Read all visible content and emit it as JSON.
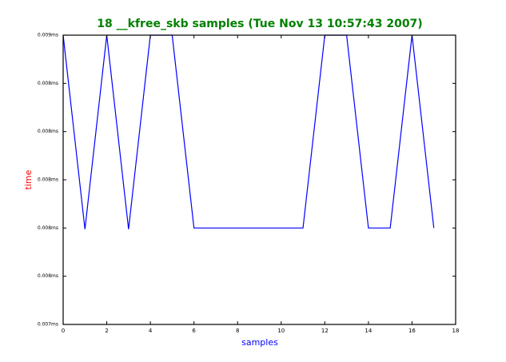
{
  "chart_data": {
    "type": "line",
    "title": "18 __kfree_skb samples (Tue Nov 13 10:57:43 2007)",
    "x_label": "samples",
    "y_label": "time",
    "x": [
      0,
      1,
      2,
      3,
      4,
      5,
      6,
      7,
      8,
      9,
      10,
      11,
      12,
      13,
      14,
      15,
      16,
      17
    ],
    "series": [
      {
        "color": "#0000ff",
        "values": [
          0.0086,
          0.007795,
          0.0086,
          0.007795,
          0.0086,
          0.0086,
          0.0078,
          0.0078,
          0.0078,
          0.0078,
          0.0078,
          0.0078,
          0.0086,
          0.0086,
          0.0078,
          0.0078,
          0.0086,
          0.0078
        ]
      }
    ],
    "xlim": [
      0,
      18
    ],
    "xticks": [
      0,
      2,
      4,
      6,
      8,
      10,
      12,
      14,
      16,
      18
    ],
    "ylim": [
      0.0074,
      0.0086
    ],
    "yticks": [
      {
        "value": 0.0074,
        "label": "0.007ms"
      },
      {
        "value": 0.0076,
        "label": "0.008ms"
      },
      {
        "value": 0.0078,
        "label": "0.008ms"
      },
      {
        "value": 0.008,
        "label": "0.008ms"
      },
      {
        "value": 0.0082,
        "label": "0.008ms"
      },
      {
        "value": 0.0084,
        "label": "0.008ms"
      },
      {
        "value": 0.0086,
        "label": "0.009ms"
      }
    ],
    "title_color": "#008000",
    "x_label_color": "#0000ff",
    "y_label_color": "#ff0000"
  }
}
